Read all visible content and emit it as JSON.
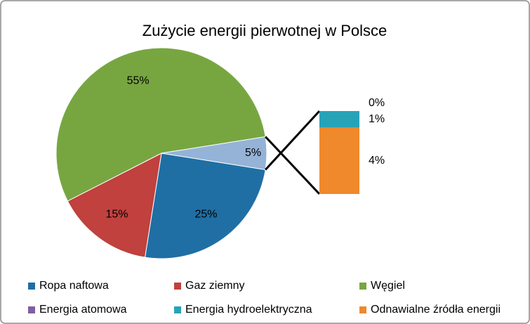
{
  "chart_data": {
    "type": "pie-of-bar",
    "title": "Zużycie energii pierwotnej w Polsce",
    "categories": [
      "Ropa naftowa",
      "Gaz ziemny",
      "Węgiel",
      "Energia atomowa",
      "Energia hydroelektryczna",
      "Odnawialne źródła energii"
    ],
    "values": [
      25,
      15,
      55,
      0,
      1,
      4
    ],
    "value_labels": [
      "25%",
      "15%",
      "55%",
      "0%",
      "1%",
      "4%"
    ],
    "colors": [
      "#1f6fa5",
      "#c0413d",
      "#77a641",
      "#7f5fa0",
      "#27a3b8",
      "#f0882c"
    ],
    "secondary_count": 3,
    "other": {
      "value": 5,
      "value_label": "5%",
      "color": "#95b3d7"
    },
    "legend": "bottom"
  }
}
